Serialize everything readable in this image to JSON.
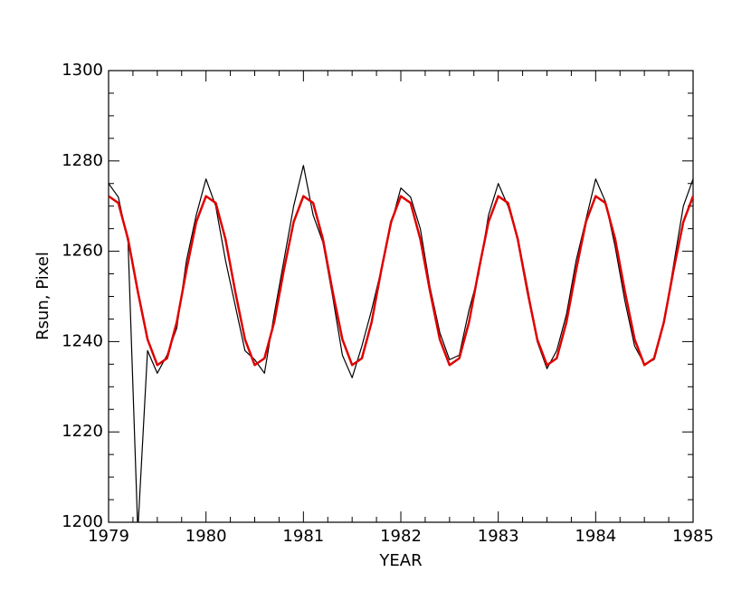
{
  "chart_data": {
    "type": "line",
    "xlabel": "YEAR",
    "ylabel": "Rsun, Pixel",
    "xlim": [
      1979,
      1985
    ],
    "xticks": [
      1979,
      1980,
      1981,
      1982,
      1983,
      1984,
      1985
    ],
    "ylim": [
      1200,
      1300
    ],
    "yticks": [
      1200,
      1220,
      1240,
      1260,
      1280,
      1300
    ],
    "x": [
      1979.0,
      1979.1,
      1979.2,
      1979.3,
      1979.4,
      1979.5,
      1979.6,
      1979.7,
      1979.8,
      1979.9,
      1980.0,
      1980.1,
      1980.2,
      1980.3,
      1980.4,
      1980.5,
      1980.6,
      1980.7,
      1980.8,
      1980.9,
      1981.0,
      1981.1,
      1981.2,
      1981.3,
      1981.4,
      1981.5,
      1981.6,
      1981.7,
      1981.8,
      1981.9,
      1982.0,
      1982.1,
      1982.2,
      1982.3,
      1982.4,
      1982.5,
      1982.6,
      1982.7,
      1982.8,
      1982.9,
      1983.0,
      1983.1,
      1983.2,
      1983.3,
      1983.4,
      1983.5,
      1983.6,
      1983.7,
      1983.8,
      1983.9,
      1984.0,
      1984.1,
      1984.2,
      1984.3,
      1984.4,
      1984.5,
      1984.6,
      1984.7,
      1984.8,
      1984.9,
      1985.0
    ],
    "series": [
      {
        "color": "#000000",
        "values": [
          1275,
          1272,
          1262,
          1198,
          1238,
          1233,
          1237,
          1243,
          1258,
          1268,
          1276,
          1270,
          1258,
          1248,
          1238,
          1236,
          1233,
          1246,
          1258,
          1270,
          1279,
          1268,
          1262,
          1250,
          1237,
          1232,
          1239,
          1247,
          1256,
          1266,
          1274,
          1272,
          1265,
          1252,
          1242,
          1236,
          1237,
          1247,
          1255,
          1268,
          1275,
          1270,
          1263,
          1252,
          1240,
          1234,
          1238,
          1246,
          1258,
          1267,
          1276,
          1271,
          1261,
          1249,
          1239,
          1235,
          1236,
          1244,
          1257,
          1270,
          1276
        ]
      },
      {
        "color": "#e00000",
        "values": [
          1272.2,
          1270.7,
          1262.7,
          1251.1,
          1240.5,
          1234.8,
          1236.3,
          1244.3,
          1255.9,
          1266.5,
          1272.2,
          1270.7,
          1262.7,
          1251.1,
          1240.5,
          1234.8,
          1236.3,
          1244.3,
          1255.9,
          1266.5,
          1272.2,
          1270.7,
          1262.7,
          1251.1,
          1240.5,
          1234.8,
          1236.3,
          1244.3,
          1255.9,
          1266.5,
          1272.2,
          1270.7,
          1262.7,
          1251.1,
          1240.5,
          1234.8,
          1236.3,
          1244.3,
          1255.9,
          1266.5,
          1272.2,
          1270.7,
          1262.7,
          1251.1,
          1240.5,
          1234.8,
          1236.3,
          1244.3,
          1255.9,
          1266.5,
          1272.2,
          1270.7,
          1262.7,
          1251.1,
          1240.5,
          1234.8,
          1236.3,
          1244.3,
          1255.9,
          1266.5,
          1272.2
        ]
      }
    ]
  }
}
